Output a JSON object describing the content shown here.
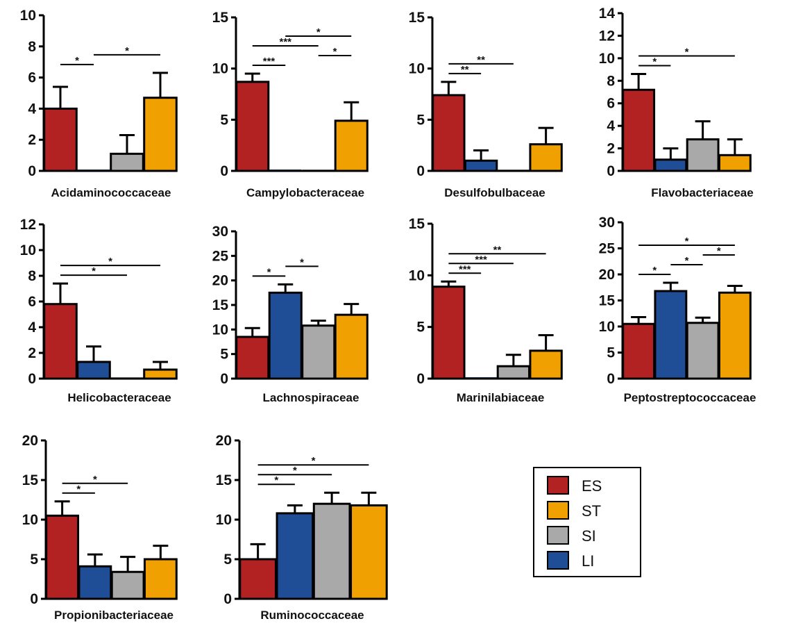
{
  "chart_data": {
    "type": "bar",
    "group_order": [
      "ES",
      "LI",
      "SI",
      "ST"
    ],
    "colors": {
      "ES": "#b22222",
      "ST": "#f0a000",
      "SI": "#a9a9a9",
      "LI": "#1f4e96"
    },
    "legend": {
      "position": "bottom-right",
      "entries": [
        "ES",
        "ST",
        "SI",
        "LI"
      ]
    },
    "panels": [
      {
        "title": "Acidaminococcaceae",
        "ylim": [
          0,
          10
        ],
        "yticks": [
          "0",
          "2",
          "4",
          "6",
          "8",
          "10"
        ],
        "bars": [
          {
            "group": "ES",
            "value": 4.0,
            "error": 1.4
          },
          {
            "group": "LI",
            "value": 0.0,
            "error": 0
          },
          {
            "group": "SI",
            "value": 1.1,
            "error": 1.2
          },
          {
            "group": "ST",
            "value": 4.7,
            "error": 1.6
          }
        ],
        "sig": [
          {
            "from": 0,
            "to": 1,
            "label": "*"
          },
          {
            "from": 1,
            "to": 3,
            "label": "*"
          }
        ]
      },
      {
        "title": "Campylobacteraceae",
        "ylim": [
          0,
          15
        ],
        "yticks": [
          "0",
          "5",
          "10",
          "15"
        ],
        "bars": [
          {
            "group": "ES",
            "value": 8.7,
            "error": 0.8
          },
          {
            "group": "LI",
            "value": 0.0,
            "error": 0
          },
          {
            "group": "SI",
            "value": 0.0,
            "error": 0
          },
          {
            "group": "ST",
            "value": 4.9,
            "error": 1.8
          }
        ],
        "sig": [
          {
            "from": 0,
            "to": 1,
            "label": "***"
          },
          {
            "from": 0,
            "to": 2,
            "label": "***"
          },
          {
            "from": 1,
            "to": 3,
            "label": "*"
          },
          {
            "from": 2,
            "to": 3,
            "label": "*"
          }
        ]
      },
      {
        "title": "Desulfobulbaceae",
        "ylim": [
          0,
          15
        ],
        "yticks": [
          "0",
          "5",
          "10",
          "15"
        ],
        "bars": [
          {
            "group": "ES",
            "value": 7.4,
            "error": 1.3
          },
          {
            "group": "LI",
            "value": 1.0,
            "error": 1.0
          },
          {
            "group": "SI",
            "value": 0.0,
            "error": 0
          },
          {
            "group": "ST",
            "value": 2.6,
            "error": 1.6
          }
        ],
        "sig": [
          {
            "from": 0,
            "to": 1,
            "label": "**"
          },
          {
            "from": 0,
            "to": 2,
            "label": "**"
          }
        ]
      },
      {
        "title": "Flavobacteriaceae",
        "ylim": [
          0,
          14
        ],
        "yticks": [
          "0",
          "2",
          "4",
          "6",
          "8",
          "10",
          "12",
          "14"
        ],
        "bars": [
          {
            "group": "ES",
            "value": 7.2,
            "error": 1.4
          },
          {
            "group": "LI",
            "value": 1.0,
            "error": 1.0
          },
          {
            "group": "SI",
            "value": 2.8,
            "error": 1.6
          },
          {
            "group": "ST",
            "value": 1.4,
            "error": 1.4
          }
        ],
        "sig": [
          {
            "from": 0,
            "to": 1,
            "label": "*"
          },
          {
            "from": 0,
            "to": 3,
            "label": "*"
          }
        ]
      },
      {
        "title": "Helicobacteraceae",
        "ylim": [
          0,
          12
        ],
        "yticks": [
          "0",
          "2",
          "4",
          "6",
          "8",
          "10",
          "12"
        ],
        "bars": [
          {
            "group": "ES",
            "value": 5.8,
            "error": 1.6
          },
          {
            "group": "LI",
            "value": 1.3,
            "error": 1.2
          },
          {
            "group": "SI",
            "value": 0.0,
            "error": 0
          },
          {
            "group": "ST",
            "value": 0.7,
            "error": 0.6
          }
        ],
        "sig": [
          {
            "from": 0,
            "to": 2,
            "label": "*"
          },
          {
            "from": 0,
            "to": 3,
            "label": "*"
          }
        ]
      },
      {
        "title": "Lachnospiraceae",
        "ylim": [
          0,
          30
        ],
        "yticks": [
          "0",
          "5",
          "10",
          "15",
          "20",
          "25",
          "30"
        ],
        "bars": [
          {
            "group": "ES",
            "value": 8.5,
            "error": 1.8
          },
          {
            "group": "LI",
            "value": 17.5,
            "error": 1.7
          },
          {
            "group": "SI",
            "value": 10.8,
            "error": 1.0
          },
          {
            "group": "ST",
            "value": 13.0,
            "error": 2.2
          }
        ],
        "sig": [
          {
            "from": 0,
            "to": 1,
            "label": "*"
          },
          {
            "from": 1,
            "to": 2,
            "label": "*"
          }
        ]
      },
      {
        "title": "Marinilabiaceae",
        "ylim": [
          0,
          15
        ],
        "yticks": [
          "0",
          "5",
          "10",
          "15"
        ],
        "bars": [
          {
            "group": "ES",
            "value": 8.9,
            "error": 0.5
          },
          {
            "group": "LI",
            "value": 0.0,
            "error": 0
          },
          {
            "group": "SI",
            "value": 1.2,
            "error": 1.1
          },
          {
            "group": "ST",
            "value": 2.7,
            "error": 1.5
          }
        ],
        "sig": [
          {
            "from": 0,
            "to": 1,
            "label": "***"
          },
          {
            "from": 0,
            "to": 2,
            "label": "***"
          },
          {
            "from": 0,
            "to": 3,
            "label": "**"
          }
        ]
      },
      {
        "title": "Peptostreptococcaceae",
        "ylim": [
          0,
          30
        ],
        "yticks": [
          "0",
          "5",
          "10",
          "15",
          "20",
          "25",
          "30"
        ],
        "bars": [
          {
            "group": "ES",
            "value": 10.5,
            "error": 1.3
          },
          {
            "group": "LI",
            "value": 16.8,
            "error": 1.6
          },
          {
            "group": "SI",
            "value": 10.7,
            "error": 1.0
          },
          {
            "group": "ST",
            "value": 16.5,
            "error": 1.3
          }
        ],
        "sig": [
          {
            "from": 0,
            "to": 1,
            "label": "*"
          },
          {
            "from": 1,
            "to": 2,
            "label": "*"
          },
          {
            "from": 2,
            "to": 3,
            "label": "*"
          },
          {
            "from": 0,
            "to": 3,
            "label": "*"
          }
        ]
      },
      {
        "title": "Propionibacteriaceae",
        "ylim": [
          0,
          20
        ],
        "yticks": [
          "0",
          "5",
          "10",
          "15",
          "20"
        ],
        "bars": [
          {
            "group": "ES",
            "value": 10.5,
            "error": 1.8
          },
          {
            "group": "LI",
            "value": 4.1,
            "error": 1.5
          },
          {
            "group": "SI",
            "value": 3.4,
            "error": 1.9
          },
          {
            "group": "ST",
            "value": 5.0,
            "error": 1.7
          }
        ],
        "sig": [
          {
            "from": 0,
            "to": 1,
            "label": "*"
          },
          {
            "from": 0,
            "to": 2,
            "label": "*"
          }
        ]
      },
      {
        "title": "Ruminococcaceae",
        "ylim": [
          0,
          20
        ],
        "yticks": [
          "0",
          "5",
          "10",
          "15",
          "20"
        ],
        "bars": [
          {
            "group": "ES",
            "value": 5.0,
            "error": 1.9
          },
          {
            "group": "LI",
            "value": 10.8,
            "error": 1.0
          },
          {
            "group": "SI",
            "value": 12.0,
            "error": 1.4
          },
          {
            "group": "ST",
            "value": 11.8,
            "error": 1.6
          }
        ],
        "sig": [
          {
            "from": 0,
            "to": 1,
            "label": "*"
          },
          {
            "from": 0,
            "to": 2,
            "label": "*"
          },
          {
            "from": 0,
            "to": 3,
            "label": "*"
          }
        ]
      }
    ]
  }
}
